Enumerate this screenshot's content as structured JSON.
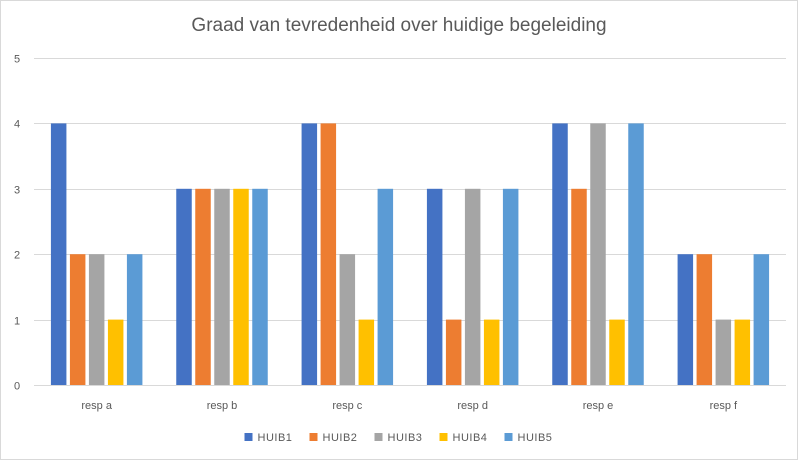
{
  "chart_data": {
    "type": "bar",
    "title": "Graad van tevredenheid over huidige begeleiding",
    "xlabel": "",
    "ylabel": "",
    "ylim": [
      0,
      5
    ],
    "yticks": [
      "0",
      "1",
      "2",
      "3",
      "4",
      "5"
    ],
    "grid": true,
    "legend_position": "bottom",
    "categories": [
      "resp a",
      "resp b",
      "resp c",
      "resp d",
      "resp e",
      "resp f"
    ],
    "series": [
      {
        "name": "HUIB1",
        "color": "#4472c4",
        "values": [
          4,
          3,
          4,
          3,
          4,
          2
        ]
      },
      {
        "name": "HUIB2",
        "color": "#ed7d31",
        "values": [
          2,
          3,
          4,
          1,
          3,
          2
        ]
      },
      {
        "name": "HUIB3",
        "color": "#a5a5a5",
        "values": [
          2,
          3,
          2,
          3,
          4,
          1
        ]
      },
      {
        "name": "HUIB4",
        "color": "#ffc000",
        "values": [
          1,
          3,
          1,
          1,
          1,
          1
        ]
      },
      {
        "name": "HUIB5",
        "color": "#5b9bd5",
        "values": [
          2,
          3,
          3,
          3,
          4,
          2
        ]
      }
    ]
  }
}
